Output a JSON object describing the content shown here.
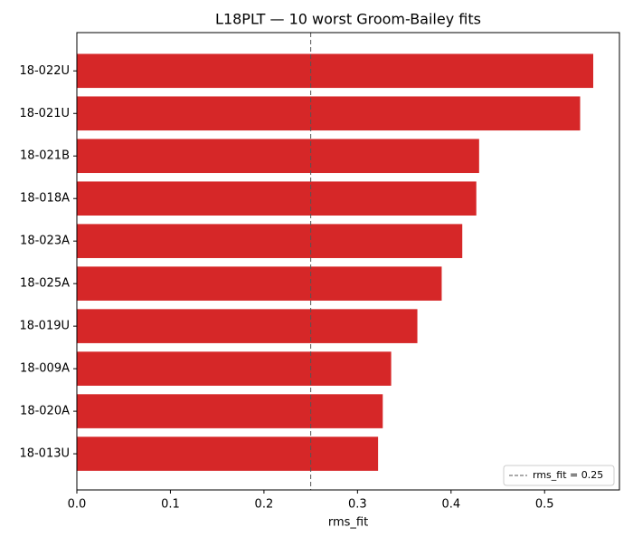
{
  "chart_data": {
    "type": "barh",
    "title": "L18PLT — 10 worst Groom-Bailey fits",
    "x_label": "rms_fit",
    "categories": [
      "18-022U",
      "18-021U",
      "18-021B",
      "18-018A",
      "18-023A",
      "18-025A",
      "18-019U",
      "18-009A",
      "18-020A",
      "18-013U"
    ],
    "values": [
      0.552,
      0.538,
      0.43,
      0.427,
      0.412,
      0.39,
      0.364,
      0.336,
      0.327,
      0.322
    ],
    "color": "#d62728",
    "xlim": [
      0,
      0.58
    ],
    "xticks": [
      {
        "value": 0,
        "label": "0.0"
      },
      0.1,
      0.2,
      0.3,
      0.4,
      0.5
    ],
    "reference_line": {
      "value": 0.25,
      "label": "rms_fit = 0.25",
      "color": "#555555"
    },
    "legend_position": "lower right"
  }
}
